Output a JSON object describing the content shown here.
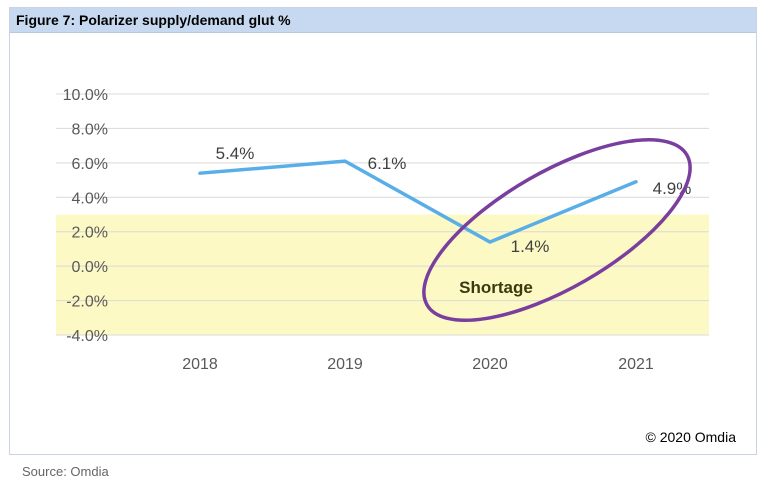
{
  "figure_title": "Figure 7: Polarizer supply/demand glut %",
  "source": "Source: Omdia",
  "copyright": "© 2020 Omdia",
  "annotation": "Shortage",
  "colors": {
    "line": "#5aaee8",
    "shortage_band": "#fdf9c4",
    "ellipse": "#7a3f9e",
    "title_bg": "#c6d9f1"
  },
  "chart_data": {
    "type": "line",
    "title": "Figure 7: Polarizer supply/demand glut %",
    "categories": [
      "2018",
      "2019",
      "2020",
      "2021"
    ],
    "series": [
      {
        "name": "Polarizer supply/demand glut %",
        "values": [
          5.4,
          6.1,
          1.4,
          4.9
        ]
      }
    ],
    "data_labels": [
      "5.4%",
      "6.1%",
      "1.4%",
      "4.9%"
    ],
    "ylim": [
      -4,
      10
    ],
    "yticks": [
      10,
      8,
      6,
      4,
      2,
      0,
      -2,
      -4
    ],
    "ytick_labels": [
      "10.0%",
      "8.0%",
      "6.0%",
      "4.0%",
      "2.0%",
      "0.0%",
      "-2.0%",
      "-4.0%"
    ],
    "shortage_range": [
      -4,
      3
    ],
    "grid": true,
    "xlabel": "",
    "ylabel": ""
  }
}
